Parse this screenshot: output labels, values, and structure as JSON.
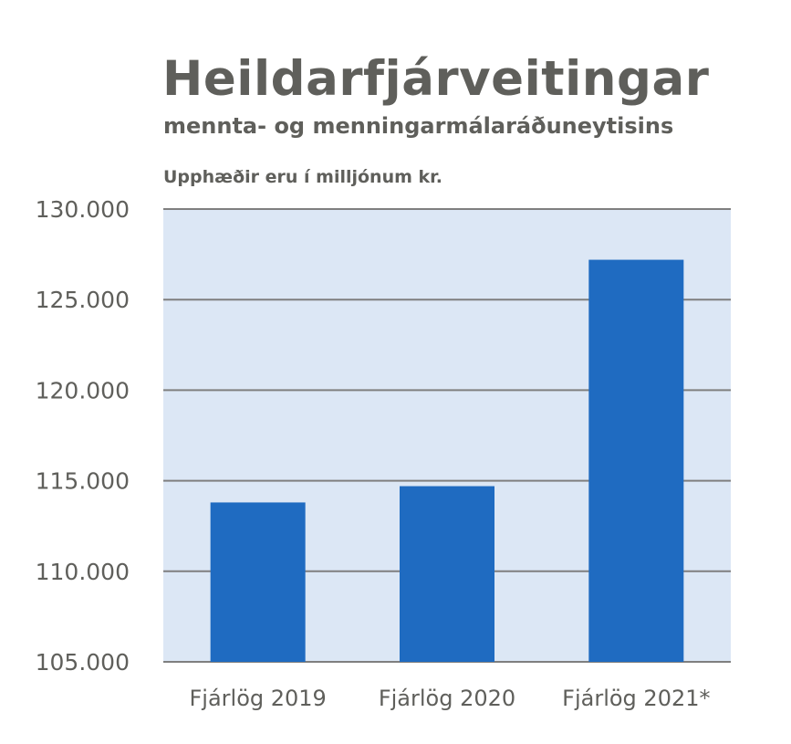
{
  "header": {
    "title": "Heildarfjárveitingar",
    "subtitle": "mennta- og menningarmálaráðuneytisins",
    "unit_note": "Upphæðir eru í milljónum kr."
  },
  "colors": {
    "bar": "#1f6bc1",
    "plot_background": "#dce7f5",
    "gridline": "#7f7f7f",
    "text": "#5f5f5b"
  },
  "chart_data": {
    "type": "bar",
    "title": "Heildarfjárveitingar",
    "subtitle": "mennta- og menningarmálaráðuneytisins",
    "ylabel": "Upphæðir eru í milljónum kr.",
    "xlabel": "",
    "categories": [
      "Fjárlög 2019",
      "Fjárlög 2020",
      "Fjárlög 2021*"
    ],
    "values": [
      113800,
      114700,
      127200
    ],
    "ylim": [
      105000,
      130000
    ],
    "yticks": [
      105000,
      110000,
      115000,
      120000,
      125000,
      130000
    ],
    "ytick_labels": [
      "105.000",
      "110.000",
      "115.000",
      "120.000",
      "125.000",
      "130.000"
    ],
    "grid": true,
    "legend": "none"
  }
}
